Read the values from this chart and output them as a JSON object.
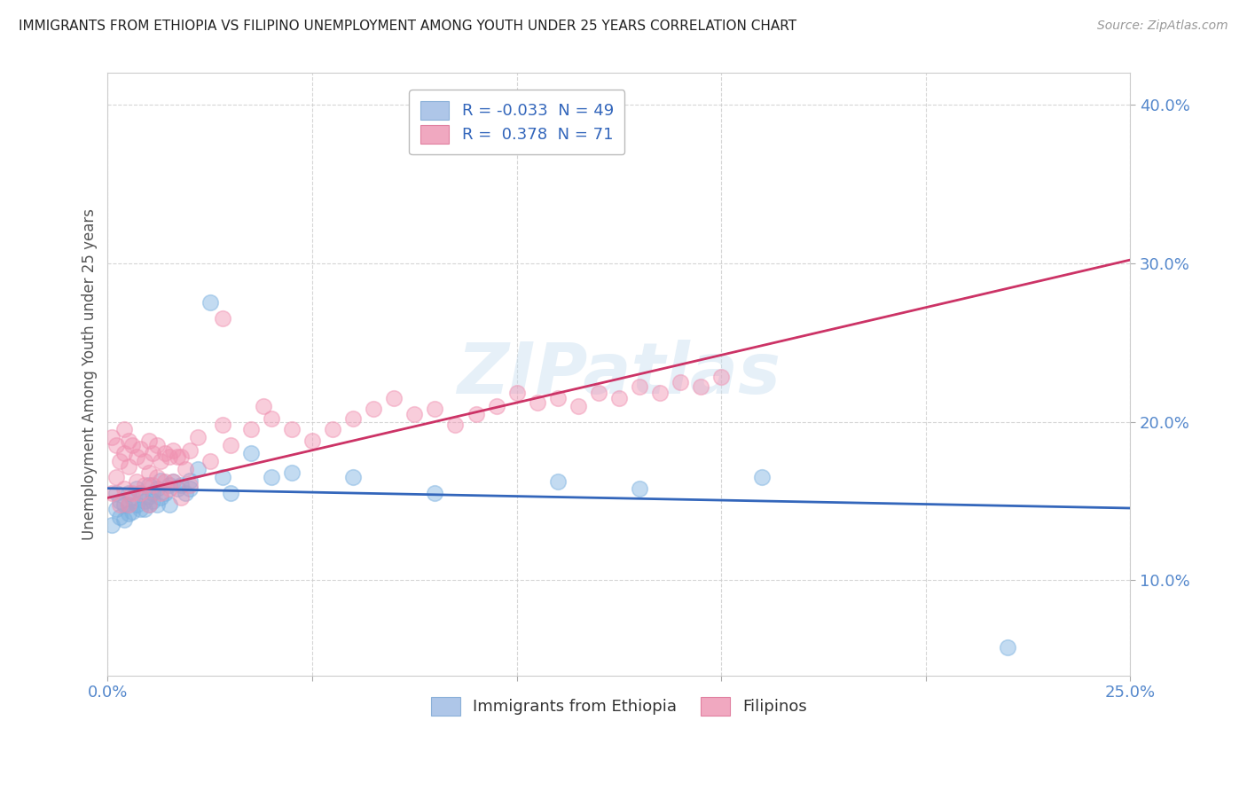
{
  "title": "IMMIGRANTS FROM ETHIOPIA VS FILIPINO UNEMPLOYMENT AMONG YOUTH UNDER 25 YEARS CORRELATION CHART",
  "source": "Source: ZipAtlas.com",
  "ylabel": "Unemployment Among Youth under 25 years",
  "xlim": [
    0.0,
    0.25
  ],
  "ylim": [
    0.04,
    0.42
  ],
  "x_ticks": [
    0.0,
    0.05,
    0.1,
    0.15,
    0.2,
    0.25
  ],
  "y_ticks": [
    0.1,
    0.2,
    0.3,
    0.4
  ],
  "x_tick_labels": [
    "0.0%",
    "",
    "",
    "",
    "",
    "25.0%"
  ],
  "y_tick_labels": [
    "10.0%",
    "20.0%",
    "30.0%",
    "40.0%"
  ],
  "legend1_label": "R = -0.033  N = 49",
  "legend2_label": "R =  0.378  N = 71",
  "legend1_box_color": "#aec6e8",
  "legend2_box_color": "#f0a8c0",
  "watermark": "ZIPatlas",
  "series1_name": "Immigrants from Ethiopia",
  "series2_name": "Filipinos",
  "series1_color": "#7ab0e0",
  "series2_color": "#f090b0",
  "trend1_color": "#3366bb",
  "trend2_color": "#cc3366",
  "trend1_R": -0.033,
  "trend2_R": 0.378,
  "background_color": "#ffffff",
  "grid_color": "#cccccc",
  "ethiopia_x": [
    0.001,
    0.002,
    0.002,
    0.003,
    0.003,
    0.004,
    0.004,
    0.005,
    0.005,
    0.005,
    0.006,
    0.006,
    0.007,
    0.007,
    0.008,
    0.008,
    0.009,
    0.009,
    0.01,
    0.01,
    0.01,
    0.011,
    0.011,
    0.012,
    0.012,
    0.013,
    0.013,
    0.014,
    0.015,
    0.015,
    0.016,
    0.017,
    0.018,
    0.019,
    0.02,
    0.02,
    0.022,
    0.025,
    0.028,
    0.03,
    0.035,
    0.04,
    0.045,
    0.06,
    0.08,
    0.11,
    0.13,
    0.16,
    0.22
  ],
  "ethiopia_y": [
    0.135,
    0.145,
    0.155,
    0.14,
    0.15,
    0.148,
    0.138,
    0.142,
    0.155,
    0.148,
    0.152,
    0.143,
    0.148,
    0.158,
    0.145,
    0.155,
    0.15,
    0.145,
    0.153,
    0.16,
    0.148,
    0.15,
    0.155,
    0.158,
    0.148,
    0.152,
    0.163,
    0.155,
    0.16,
    0.148,
    0.162,
    0.158,
    0.16,
    0.155,
    0.163,
    0.158,
    0.17,
    0.275,
    0.165,
    0.155,
    0.18,
    0.165,
    0.168,
    0.165,
    0.155,
    0.162,
    0.158,
    0.165,
    0.058
  ],
  "filipino_x": [
    0.001,
    0.001,
    0.002,
    0.002,
    0.003,
    0.003,
    0.004,
    0.004,
    0.004,
    0.005,
    0.005,
    0.005,
    0.006,
    0.006,
    0.007,
    0.007,
    0.008,
    0.008,
    0.009,
    0.009,
    0.01,
    0.01,
    0.01,
    0.011,
    0.011,
    0.012,
    0.012,
    0.013,
    0.013,
    0.014,
    0.014,
    0.015,
    0.015,
    0.016,
    0.016,
    0.017,
    0.018,
    0.018,
    0.019,
    0.02,
    0.02,
    0.022,
    0.025,
    0.028,
    0.03,
    0.035,
    0.038,
    0.04,
    0.045,
    0.05,
    0.055,
    0.06,
    0.065,
    0.07,
    0.075,
    0.08,
    0.085,
    0.09,
    0.095,
    0.1,
    0.105,
    0.11,
    0.115,
    0.12,
    0.125,
    0.13,
    0.135,
    0.14,
    0.145,
    0.15,
    0.028
  ],
  "filipino_y": [
    0.19,
    0.155,
    0.185,
    0.165,
    0.175,
    0.148,
    0.18,
    0.195,
    0.158,
    0.188,
    0.172,
    0.148,
    0.185,
    0.155,
    0.178,
    0.162,
    0.183,
    0.155,
    0.175,
    0.16,
    0.188,
    0.168,
    0.148,
    0.18,
    0.16,
    0.185,
    0.165,
    0.175,
    0.155,
    0.18,
    0.162,
    0.178,
    0.158,
    0.182,
    0.162,
    0.178,
    0.178,
    0.152,
    0.17,
    0.182,
    0.16,
    0.19,
    0.175,
    0.198,
    0.185,
    0.195,
    0.21,
    0.202,
    0.195,
    0.188,
    0.195,
    0.202,
    0.208,
    0.215,
    0.205,
    0.208,
    0.198,
    0.205,
    0.21,
    0.218,
    0.212,
    0.215,
    0.21,
    0.218,
    0.215,
    0.222,
    0.218,
    0.225,
    0.222,
    0.228,
    0.265
  ]
}
